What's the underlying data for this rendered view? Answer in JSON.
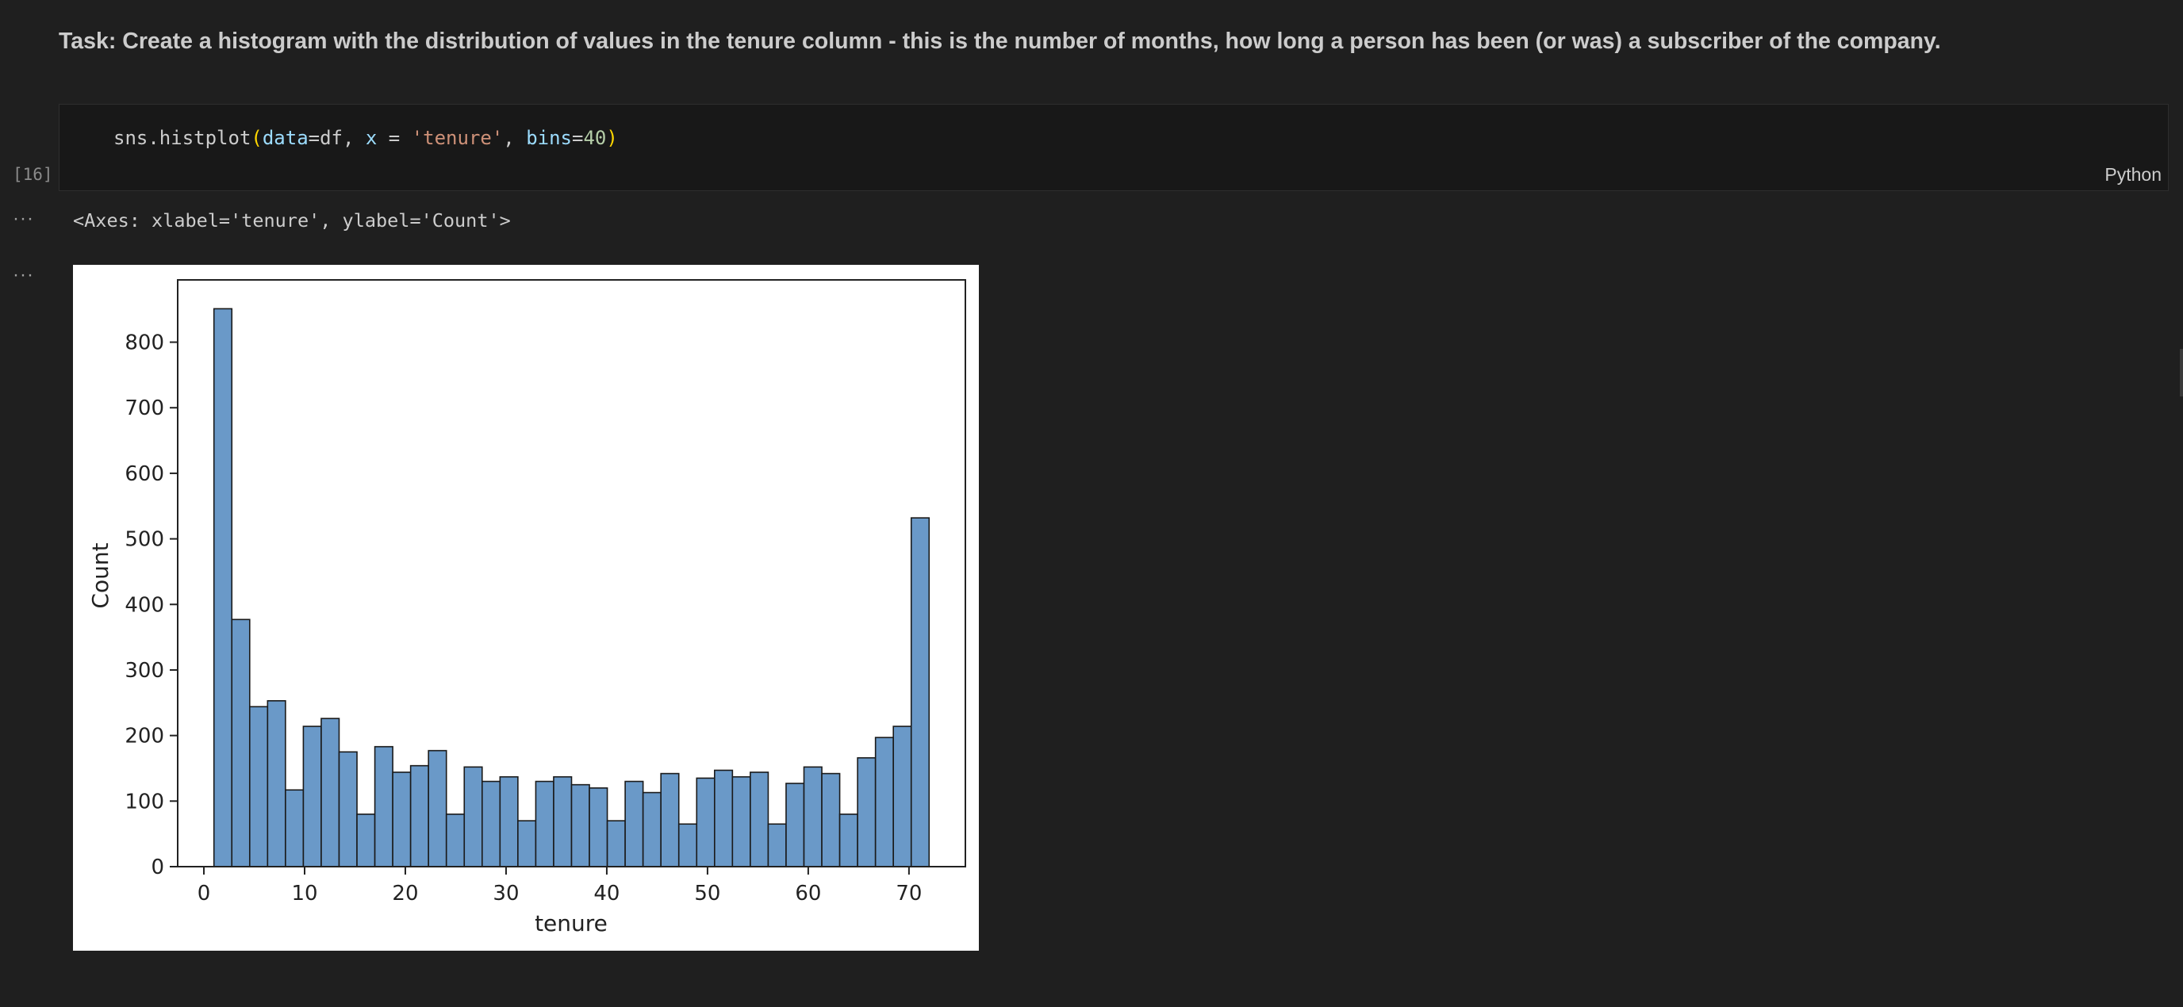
{
  "markdown": {
    "task_text": "Task: Create a histogram with the distribution of values in the tenure column - this is the number of months, how long a person has been (or was) a subscriber of the company."
  },
  "code_cell": {
    "execution_count": "[16]",
    "language": "Python",
    "code_tokens": [
      {
        "t": "sns.histplot",
        "c": "tok-fn-plain"
      },
      {
        "t": "(",
        "c": "tok-paren"
      },
      {
        "t": "data",
        "c": "tok-param"
      },
      {
        "t": "=df, ",
        "c": "tok-plain"
      },
      {
        "t": "x",
        "c": "tok-var"
      },
      {
        "t": " = ",
        "c": "tok-plain"
      },
      {
        "t": "'tenure'",
        "c": "tok-str"
      },
      {
        "t": ", ",
        "c": "tok-plain"
      },
      {
        "t": "bins",
        "c": "tok-param"
      },
      {
        "t": "=",
        "c": "tok-plain"
      },
      {
        "t": "40",
        "c": "tok-num"
      },
      {
        "t": ")",
        "c": "tok-paren"
      }
    ]
  },
  "output": {
    "dots": "···",
    "text_output": "<Axes: xlabel='tenure', ylabel='Count'>"
  },
  "colors": {
    "bar_fill": "#6a99c8",
    "bar_edge": "#1a1a1a",
    "axis": "#222222"
  },
  "chart_data": {
    "type": "bar",
    "title": "",
    "xlabel": "tenure",
    "ylabel": "Count",
    "xlim": [
      -2.6,
      75.6
    ],
    "ylim": [
      0,
      895
    ],
    "x_ticks": [
      0,
      10,
      20,
      30,
      40,
      50,
      60,
      70
    ],
    "y_ticks": [
      0,
      100,
      200,
      300,
      400,
      500,
      600,
      700,
      800
    ],
    "grid": false,
    "bin_start": 1,
    "bin_end": 72,
    "values": [
      851,
      377,
      244,
      253,
      117,
      214,
      226,
      175,
      80,
      183,
      144,
      154,
      177,
      80,
      152,
      130,
      137,
      70,
      130,
      137,
      125,
      120,
      70,
      130,
      113,
      142,
      65,
      135,
      147,
      137,
      144,
      65,
      127,
      152,
      142,
      80,
      166,
      197,
      214,
      532
    ]
  }
}
